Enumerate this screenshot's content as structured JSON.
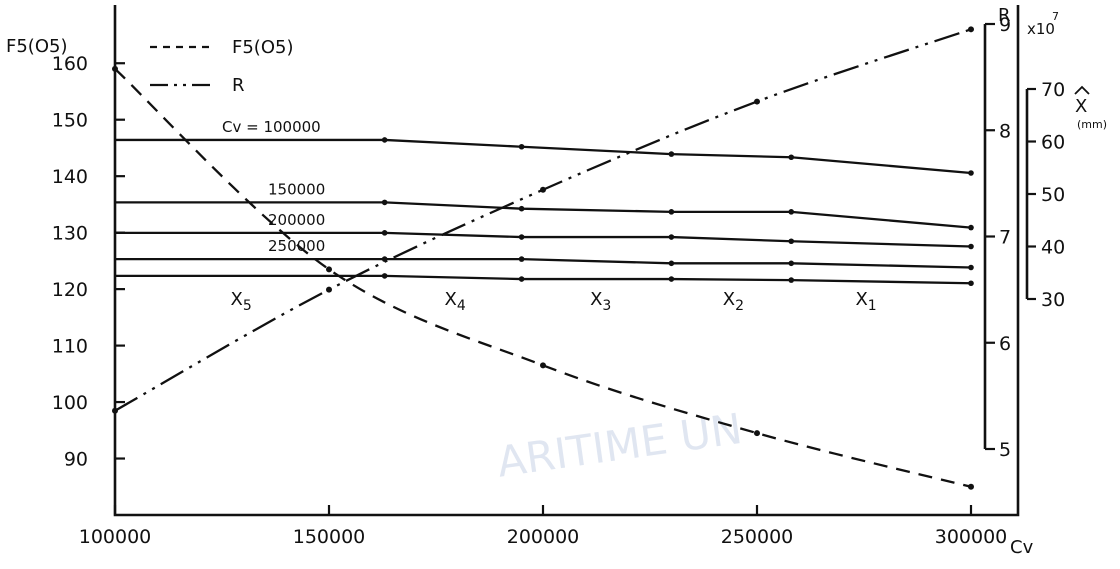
{
  "chart_data": {
    "type": "line",
    "x_axis": {
      "label": "Cv",
      "ticks": [
        100000,
        150000,
        200000,
        250000,
        300000
      ],
      "tick_labels": [
        "100000",
        "150000",
        "200000",
        "250000",
        "300000"
      ],
      "range": [
        100000,
        300000
      ]
    },
    "y_axis_left": {
      "label": "F5(O5)",
      "ticks": [
        90,
        100,
        110,
        120,
        130,
        140,
        150,
        160
      ],
      "tick_labels": [
        "90",
        "100",
        "110",
        "120",
        "130",
        "140",
        "150",
        "160"
      ],
      "range": [
        80,
        165
      ]
    },
    "y_axis_R": {
      "label": "R",
      "multiplier": "x10",
      "exponent": "7",
      "ticks": [
        5,
        6,
        7,
        8,
        9
      ],
      "tick_labels": [
        "5",
        "6",
        "7",
        "8",
        "9"
      ],
      "range": [
        5,
        9
      ]
    },
    "y_axis_X": {
      "label": "X",
      "unit": "(mm)",
      "ticks": [
        30,
        40,
        50,
        60,
        70
      ],
      "tick_labels": [
        "30",
        "40",
        "50",
        "60",
        "70"
      ],
      "range": [
        30,
        70
      ]
    },
    "legend": [
      {
        "label": "F5(O5)",
        "style": "dashed"
      },
      {
        "label": "R",
        "style": "dash-dot-dot"
      }
    ],
    "series": [
      {
        "name": "F5(O5)",
        "axis": "left",
        "style": "dashed",
        "x": [
          100000,
          150000,
          200000,
          250000,
          300000
        ],
        "y": [
          159,
          123.5,
          106.5,
          94.5,
          85
        ]
      },
      {
        "name": "R",
        "axis": "R",
        "style": "dash-dot-dot",
        "x": [
          100000,
          150000,
          200000,
          250000,
          300000
        ],
        "y": [
          5.36,
          6.5,
          7.44,
          8.27,
          8.95
        ]
      }
    ],
    "cv_curves": {
      "axis": "X",
      "x": [
        100000,
        163000,
        195000,
        230000,
        258000,
        300000
      ],
      "lines": [
        {
          "name": "Cv = 100000",
          "values": [
            60.3,
            60.3,
            59.0,
            57.6,
            57.0,
            54.0
          ]
        },
        {
          "name": "150000",
          "values": [
            48.4,
            48.4,
            47.2,
            46.6,
            46.6,
            43.6
          ]
        },
        {
          "name": "200000",
          "values": [
            42.6,
            42.6,
            41.8,
            41.8,
            41.0,
            40.0
          ]
        },
        {
          "name": "250000",
          "values": [
            37.6,
            37.6,
            37.6,
            36.8,
            36.8,
            36.0
          ]
        },
        {
          "name": "",
          "values": [
            34.4,
            34.4,
            33.8,
            33.8,
            33.6,
            33.0
          ]
        }
      ]
    },
    "region_labels": [
      {
        "text": "X5",
        "main": "X",
        "sub": "5",
        "x": 127000
      },
      {
        "text": "X4",
        "main": "X",
        "sub": "4",
        "x": 177000
      },
      {
        "text": "X3",
        "main": "X",
        "sub": "3",
        "x": 211000
      },
      {
        "text": "X2",
        "main": "X",
        "sub": "2",
        "x": 242000
      },
      {
        "text": "X1",
        "main": "X",
        "sub": "1",
        "x": 273000
      }
    ],
    "corner_R": "R",
    "watermark": "ARITIME UN"
  }
}
